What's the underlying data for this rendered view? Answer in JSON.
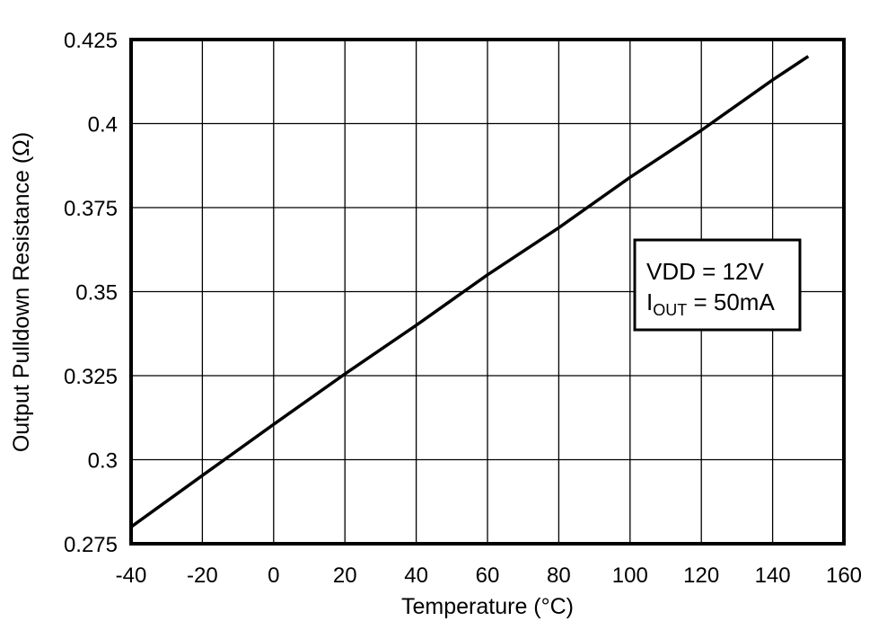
{
  "chart_data": {
    "type": "line",
    "title": "",
    "xlabel": "Temperature (°C)",
    "ylabel": "Output Pulldown Resistance (Ω)",
    "xlim": [
      -40,
      160
    ],
    "ylim": [
      0.275,
      0.425
    ],
    "xticks": [
      "-40",
      "-20",
      "0",
      "20",
      "40",
      "60",
      "80",
      "100",
      "120",
      "140",
      "160"
    ],
    "yticks": [
      "0.275",
      "0.3",
      "0.325",
      "0.35",
      "0.375",
      "0.4",
      "0.425"
    ],
    "grid": true,
    "legend_position": "inside-right",
    "annotation": {
      "line1": "VDD = 12V",
      "line2_main": "I",
      "line2_sub": "OUT",
      "line2_rest": " = 50mA"
    },
    "series": [
      {
        "name": "VDD = 12V, IOUT = 50mA",
        "x": [
          -40,
          -20,
          0,
          20,
          40,
          60,
          80,
          100,
          120,
          140,
          150
        ],
        "values": [
          0.28,
          0.2953,
          0.3105,
          0.3255,
          0.34,
          0.355,
          0.369,
          0.384,
          0.398,
          0.413,
          0.42
        ]
      }
    ]
  },
  "colors": {
    "line": "#000000",
    "grid": "#000000",
    "background": "#ffffff"
  }
}
